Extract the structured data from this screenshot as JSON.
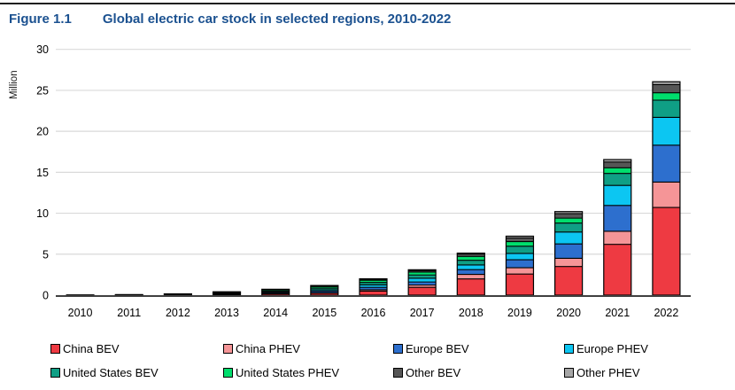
{
  "header": {
    "figure_label": "Figure 1.1",
    "title": "Global electric car stock in selected regions, 2010-2022"
  },
  "colors": {
    "title_text": "#1b5190",
    "top_rule": "#1f1f1f",
    "grid_line": "#d9d9d9",
    "axis_line": "#404040",
    "bar_border": "#000000",
    "tick_text": "#000000"
  },
  "chart_data": {
    "type": "bar",
    "stacked": true,
    "title": "Global electric car stock in selected regions, 2010-2022",
    "ylabel": "Million",
    "xlabel": "",
    "ylim": [
      0,
      30
    ],
    "yticks": [
      0,
      5,
      10,
      15,
      20,
      25,
      30
    ],
    "grid": "horizontal",
    "legend_position": "bottom",
    "categories": [
      "2010",
      "2011",
      "2012",
      "2013",
      "2014",
      "2015",
      "2016",
      "2017",
      "2018",
      "2019",
      "2020",
      "2021",
      "2022"
    ],
    "series": [
      {
        "id": "china-bev",
        "name": "China BEV",
        "color": "#ee3a42",
        "values": [
          0.005,
          0.015,
          0.03,
          0.08,
          0.17,
          0.23,
          0.49,
          0.95,
          1.98,
          2.58,
          3.5,
          6.2,
          10.7
        ]
      },
      {
        "id": "china-phev",
        "name": "China PHEV",
        "color": "#f59597",
        "values": [
          0.0,
          0.0,
          0.003,
          0.01,
          0.02,
          0.08,
          0.17,
          0.28,
          0.56,
          0.77,
          1.0,
          1.6,
          3.1
        ]
      },
      {
        "id": "europe-bev",
        "name": "Europe BEV",
        "color": "#2d6fce",
        "values": [
          0.004,
          0.012,
          0.03,
          0.07,
          0.13,
          0.19,
          0.29,
          0.38,
          0.58,
          0.97,
          1.75,
          3.15,
          4.5
        ]
      },
      {
        "id": "europe-phev",
        "name": "Europe PHEV",
        "color": "#0cc6f2",
        "values": [
          0.0,
          0.002,
          0.008,
          0.025,
          0.06,
          0.15,
          0.3,
          0.45,
          0.57,
          0.77,
          1.45,
          2.45,
          3.4
        ]
      },
      {
        "id": "united-states-bev",
        "name": "United States BEV",
        "color": "#0f9f85",
        "values": [
          0.001,
          0.01,
          0.028,
          0.075,
          0.13,
          0.21,
          0.3,
          0.4,
          0.56,
          0.88,
          1.1,
          1.45,
          2.1
        ]
      },
      {
        "id": "united-states-phev",
        "name": "United States PHEV",
        "color": "#00de6d",
        "values": [
          0.0,
          0.008,
          0.04,
          0.095,
          0.13,
          0.19,
          0.27,
          0.36,
          0.47,
          0.57,
          0.6,
          0.7,
          0.9
        ]
      },
      {
        "id": "other-bev",
        "name": "Other BEV",
        "color": "#565656",
        "values": [
          0.007,
          0.012,
          0.018,
          0.04,
          0.06,
          0.09,
          0.12,
          0.18,
          0.28,
          0.45,
          0.55,
          0.7,
          1.0
        ]
      },
      {
        "id": "other-phev",
        "name": "Other PHEV",
        "color": "#a6a6a6",
        "values": [
          0.0,
          0.001,
          0.003,
          0.01,
          0.02,
          0.04,
          0.06,
          0.1,
          0.13,
          0.21,
          0.25,
          0.3,
          0.35
        ]
      }
    ]
  }
}
